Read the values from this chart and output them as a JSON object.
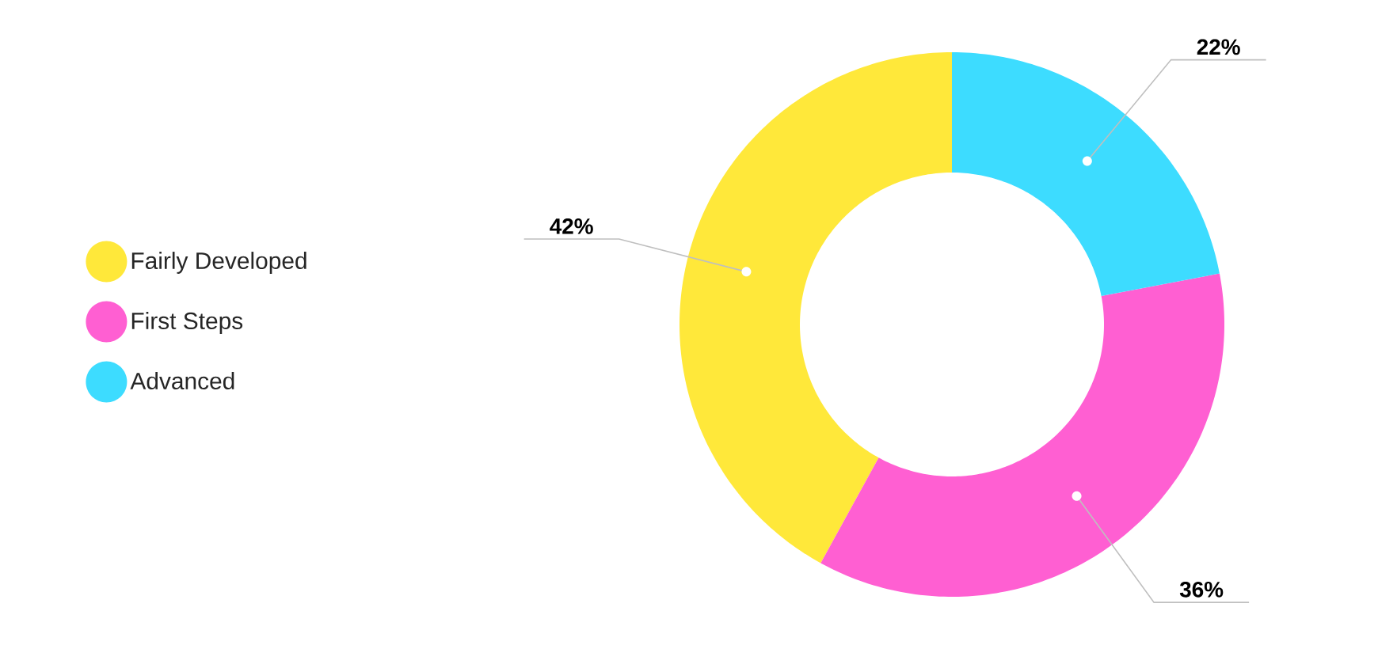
{
  "chart_data": {
    "type": "donut",
    "categories": [
      "Fairly Developed",
      "First Steps",
      "Advanced"
    ],
    "values": [
      42,
      36,
      22
    ],
    "colors": [
      "#ffe83a",
      "#ff5fd2",
      "#3ddcff"
    ],
    "value_labels": [
      "42%",
      "36%",
      "22%"
    ],
    "legend": "left"
  }
}
